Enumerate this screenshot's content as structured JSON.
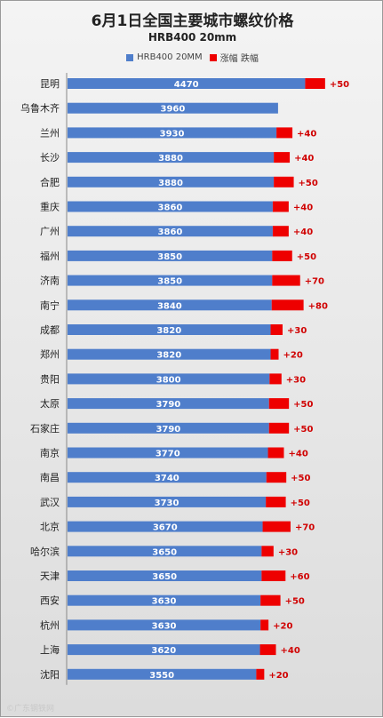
{
  "chart_data": {
    "type": "bar",
    "orientation": "horizontal",
    "stacked": true,
    "title": "6月1日全国主要城市螺纹价格",
    "subtitle": "HRB400 20mm",
    "legend_position": "top",
    "grid": false,
    "xlim": [
      0,
      5700
    ],
    "categories": [
      "昆明",
      "乌鲁木齐",
      "兰州",
      "长沙",
      "合肥",
      "重庆",
      "广州",
      "福州",
      "济南",
      "南宁",
      "成都",
      "郑州",
      "贵阳",
      "太原",
      "石家庄",
      "南京",
      "南昌",
      "武汉",
      "北京",
      "哈尔滨",
      "天津",
      "西安",
      "杭州",
      "上海",
      "沈阳"
    ],
    "series": [
      {
        "name": "HRB400 20MM",
        "color": "#4f7ecb",
        "values": [
          4470,
          3960,
          3930,
          3880,
          3880,
          3860,
          3860,
          3850,
          3850,
          3840,
          3820,
          3820,
          3800,
          3790,
          3790,
          3770,
          3740,
          3730,
          3670,
          3650,
          3650,
          3630,
          3630,
          3620,
          3550
        ],
        "labels": [
          "4470",
          "3960",
          "3930",
          "3880",
          "3880",
          "3860",
          "3860",
          "3850",
          "3850",
          "3840",
          "3820",
          "3820",
          "3800",
          "3790",
          "3790",
          "3770",
          "3740",
          "3730",
          "3670",
          "3650",
          "3650",
          "3630",
          "3630",
          "3620",
          "3550"
        ]
      },
      {
        "name": "涨幅 跌幅",
        "color": "#ee0000",
        "values": [
          50,
          null,
          40,
          40,
          50,
          40,
          40,
          50,
          70,
          80,
          30,
          20,
          30,
          50,
          50,
          40,
          50,
          50,
          70,
          30,
          60,
          50,
          20,
          40,
          20
        ],
        "labels": [
          "+50",
          "",
          "+40",
          "+40",
          "+50",
          "+40",
          "+40",
          "+50",
          "+70",
          "+80",
          "+30",
          "+20",
          "+30",
          "+50",
          "+50",
          "+40",
          "+50",
          "+50",
          "+70",
          "+30",
          "+60",
          "+50",
          "+20",
          "+40",
          "+20"
        ]
      }
    ]
  },
  "watermark": "©广东钢铁网"
}
